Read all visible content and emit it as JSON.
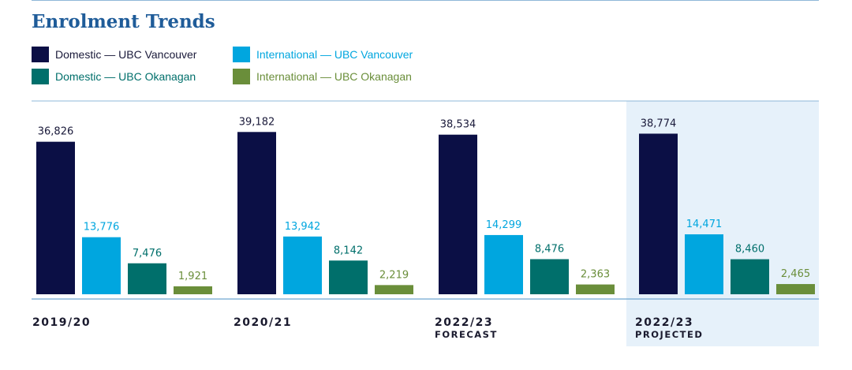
{
  "chart_data": {
    "type": "bar",
    "title": "Enrolment Trends",
    "categories": [
      {
        "label": "2019/20",
        "sublabel": ""
      },
      {
        "label": "2020/21",
        "sublabel": ""
      },
      {
        "label": "2022/23",
        "sublabel": "FORECAST"
      },
      {
        "label": "2022/23",
        "sublabel": "PROJECTED"
      }
    ],
    "highlighted_category": 3,
    "series": [
      {
        "name": "Domestic — UBC Vancouver",
        "color": "#0b0f45",
        "label_color": "#1a1a3a",
        "values": [
          36826,
          39182,
          38534,
          38774
        ],
        "labels": [
          "36,826",
          "39,182",
          "38,534",
          "38,774"
        ]
      },
      {
        "name": "International — UBC Vancouver",
        "color": "#00a6df",
        "label_color": "#00a6df",
        "values": [
          13776,
          13942,
          14299,
          14471
        ],
        "labels": [
          "13,776",
          "13,942",
          "14,299",
          "14,471"
        ]
      },
      {
        "name": "Domestic — UBC Okanagan",
        "color": "#006f6b",
        "label_color": "#006f6b",
        "values": [
          7476,
          8142,
          8476,
          8460
        ],
        "labels": [
          "7,476",
          "8,142",
          "8,476",
          "8,460"
        ]
      },
      {
        "name": "International — UBC Okanagan",
        "color": "#6a8e3a",
        "label_color": "#6a8e3a",
        "values": [
          1921,
          2219,
          2363,
          2465
        ],
        "labels": [
          "1,921",
          "2,219",
          "2,363",
          "2,465"
        ]
      }
    ],
    "ylim": [
      0,
      40000
    ],
    "legend_position": "top-left"
  }
}
